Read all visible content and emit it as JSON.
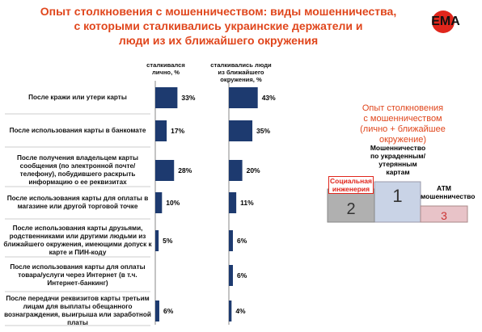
{
  "logo": "ЕМА",
  "chart_data": {
    "type": "bar",
    "title": [
      "Опыт столкновения с мошенничеством: виды мошенничества,",
      "с которыми сталкивались украинские держатели и",
      "люди из их ближайшего окружения"
    ],
    "categories": [
      "После кражи или утери карты",
      "После использования карты в банкомате",
      "После получения владельцем карты сообщения (по электронной почте/телефону), побудившего раскрыть информацию о ее реквизитах",
      "После использования карты для оплаты в магазине или другой торговой точке",
      "После использования карты друзьями, родственниками или другими людьми из ближайшего окружения, имеющими допуск к карте и ПИН-коду",
      "После использования карты для оплаты товара/услуги через Интернет (в т.ч. Интернет-банкинг)",
      "После передачи реквизитов карты третьим лицам для выплаты обещанного вознаграждения, выигрыша или заработной платы"
    ],
    "series": [
      {
        "name": "сталкивался лично, %",
        "color": "#1d3a6f",
        "values": [
          33,
          17,
          28,
          10,
          5,
          null,
          6
        ],
        "value_labels": [
          "33%",
          "17%",
          "28%",
          "10%",
          "5%",
          null,
          "6%"
        ]
      },
      {
        "name": "сталкивались люди из ближайшего окружения, %",
        "color": "#1d3a6f",
        "values": [
          43,
          35,
          20,
          11,
          6,
          6,
          4
        ],
        "value_labels": [
          "43%",
          "35%",
          "20%",
          "11%",
          "6%",
          "6%",
          "4%"
        ]
      }
    ]
  },
  "podium": {
    "title": [
      "Опыт столкновения",
      "с мошенничеством",
      "(лично + ближайшее окружение)"
    ],
    "places": [
      {
        "label": "Мошенничество по украденным/ утерянным картам",
        "rank": 1
      },
      {
        "label": "Социальная инженерия",
        "rank": 2
      },
      {
        "label": "АТМ мошенничество",
        "rank": 3
      }
    ]
  }
}
